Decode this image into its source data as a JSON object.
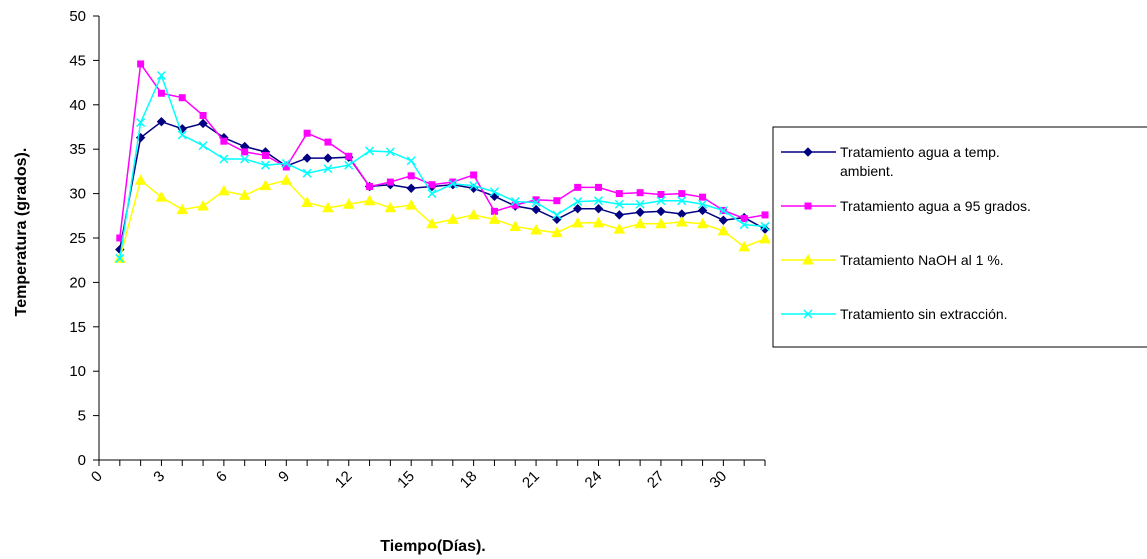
{
  "chart_data": {
    "type": "line",
    "xlabel": "Tiempo(Días).",
    "ylabel": "Temperatura (grados).",
    "xlim": [
      0,
      32
    ],
    "ylim": [
      0,
      50
    ],
    "x_ticks": [
      "0",
      "3",
      "6",
      "9",
      "12",
      "15",
      "18",
      "21",
      "24",
      "27",
      "30"
    ],
    "y_ticks": [
      "0",
      "5",
      "10",
      "15",
      "20",
      "25",
      "30",
      "35",
      "40",
      "45",
      "50"
    ],
    "grid": false,
    "legend_position": "right",
    "x": [
      1,
      2,
      3,
      4,
      5,
      6,
      7,
      8,
      9,
      10,
      11,
      12,
      13,
      14,
      15,
      16,
      17,
      18,
      19,
      20,
      21,
      22,
      23,
      24,
      25,
      26,
      27,
      28,
      29,
      30,
      31,
      32
    ],
    "series": [
      {
        "name": "Tratamiento agua a temp. ambient.",
        "name_lines": [
          "Tratamiento agua a temp.",
          "ambient."
        ],
        "color": "#000080",
        "marker": "diamond",
        "values": [
          23.7,
          36.3,
          38.1,
          37.3,
          37.9,
          36.3,
          35.3,
          34.7,
          33.1,
          34.0,
          34.0,
          34.1,
          30.8,
          31.0,
          30.6,
          30.8,
          31.0,
          30.6,
          29.7,
          28.6,
          28.2,
          27.1,
          28.3,
          28.3,
          27.6,
          27.9,
          28.0,
          27.7,
          28.1,
          27.0,
          27.3,
          26.0
        ]
      },
      {
        "name": "Tratamiento agua a 95 grados.",
        "name_lines": [
          "Tratamiento agua a 95 grados."
        ],
        "color": "#FF00FF",
        "marker": "square",
        "values": [
          25.0,
          44.6,
          41.3,
          40.8,
          38.8,
          35.9,
          34.7,
          34.3,
          33.0,
          36.8,
          35.8,
          34.2,
          30.8,
          31.3,
          32.0,
          31.0,
          31.3,
          32.1,
          28.0,
          28.7,
          29.3,
          29.2,
          30.7,
          30.7,
          30.0,
          30.1,
          29.9,
          30.0,
          29.6,
          28.1,
          27.2,
          27.6
        ]
      },
      {
        "name": "Tratamiento NaOH al 1 %.",
        "name_lines": [
          "Tratamiento NaOH al 1 %."
        ],
        "color": "#FFFF00",
        "marker": "triangle",
        "values": [
          22.7,
          31.5,
          29.6,
          28.2,
          28.6,
          30.3,
          29.8,
          30.9,
          31.5,
          29.0,
          28.4,
          28.8,
          29.2,
          28.4,
          28.7,
          26.6,
          27.1,
          27.6,
          27.1,
          26.3,
          25.9,
          25.6,
          26.7,
          26.7,
          26.0,
          26.6,
          26.6,
          26.8,
          26.6,
          25.8,
          24.0,
          24.9
        ]
      },
      {
        "name": "Tratamiento sin extracción.",
        "name_lines": [
          "Tratamiento sin extracción."
        ],
        "color": "#00FFFF",
        "marker": "x",
        "values": [
          22.7,
          38.0,
          43.3,
          36.6,
          35.4,
          33.9,
          33.9,
          33.2,
          33.4,
          32.3,
          32.8,
          33.2,
          34.8,
          34.7,
          33.7,
          30.0,
          31.1,
          30.9,
          30.2,
          29.1,
          29.0,
          27.6,
          29.1,
          29.2,
          28.8,
          28.8,
          29.2,
          29.2,
          28.8,
          28.1,
          26.5,
          26.3
        ]
      }
    ]
  }
}
